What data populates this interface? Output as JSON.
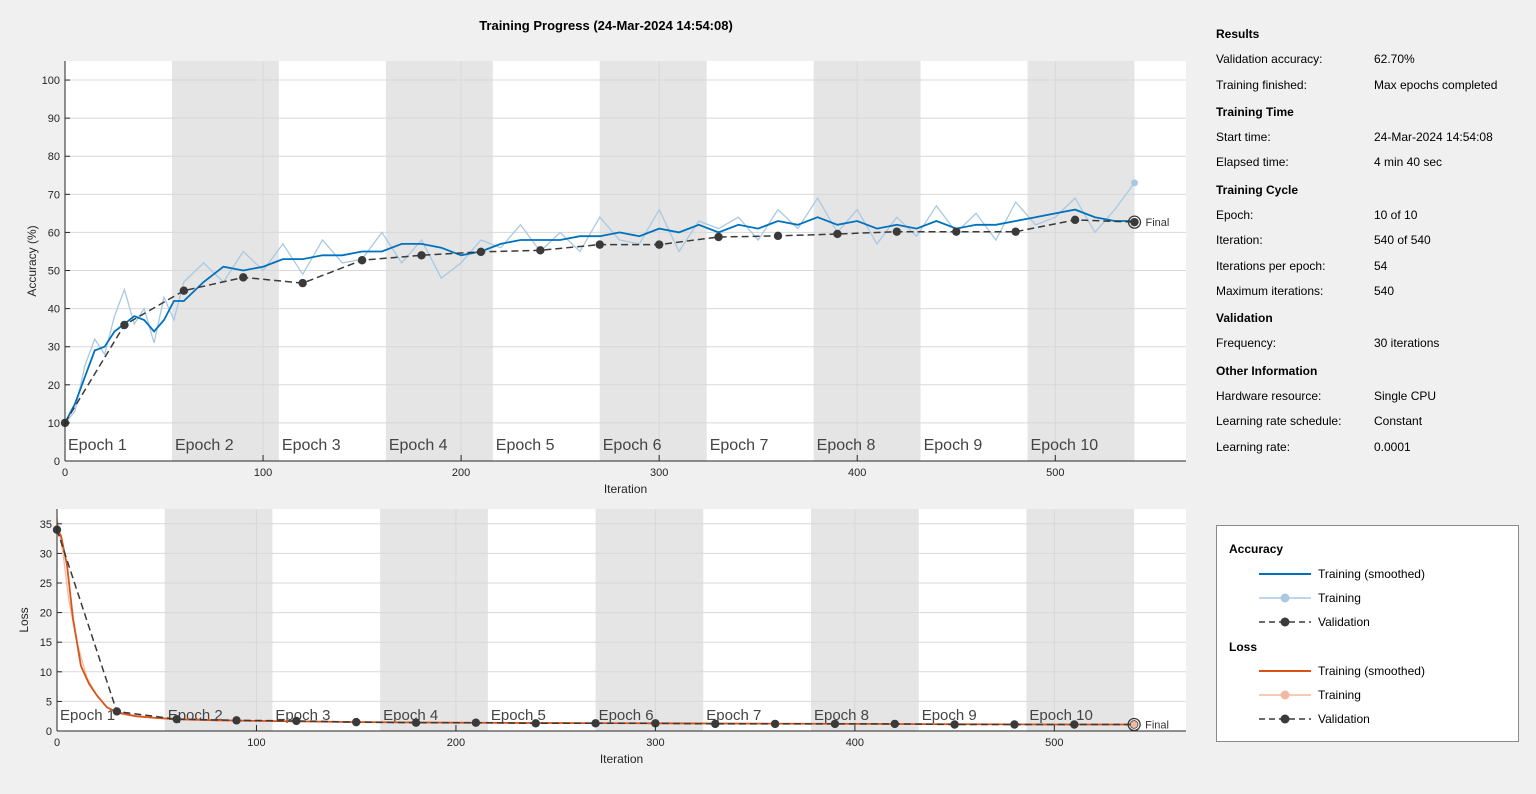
{
  "title": "Training Progress (24-Mar-2024 14:54:08)",
  "info": {
    "sections": [
      {
        "heading": "Results",
        "rows": [
          {
            "label": "Validation accuracy:",
            "value": "62.70%"
          },
          {
            "label": "Training finished:",
            "value": "Max epochs completed"
          }
        ]
      },
      {
        "heading": "Training Time",
        "rows": [
          {
            "label": "Start time:",
            "value": "24-Mar-2024 14:54:08"
          },
          {
            "label": "Elapsed time:",
            "value": "4 min 40 sec"
          }
        ]
      },
      {
        "heading": "Training Cycle",
        "rows": [
          {
            "label": "Epoch:",
            "value": "10 of 10"
          },
          {
            "label": "Iteration:",
            "value": "540 of 540"
          },
          {
            "label": "Iterations per epoch:",
            "value": "54"
          },
          {
            "label": "Maximum iterations:",
            "value": "540"
          }
        ]
      },
      {
        "heading": "Validation",
        "rows": [
          {
            "label": "Frequency:",
            "value": "30 iterations"
          }
        ]
      },
      {
        "heading": "Other Information",
        "rows": [
          {
            "label": "Hardware resource:",
            "value": "Single CPU"
          },
          {
            "label": "Learning rate schedule:",
            "value": "Constant"
          },
          {
            "label": "Learning rate:",
            "value": "0.0001"
          }
        ]
      }
    ]
  },
  "legend": {
    "accuracy_heading": "Accuracy",
    "loss_heading": "Loss",
    "items": {
      "acc_smoothed": "Training (smoothed)",
      "acc_training": "Training",
      "acc_validation": "Validation",
      "loss_smoothed": "Training (smoothed)",
      "loss_training": "Training",
      "loss_validation": "Validation"
    }
  },
  "colors": {
    "acc_smoothed": "#0072bd",
    "acc_raw": "#a9c9e2",
    "loss_smoothed": "#d95319",
    "loss_raw": "#f1b9a1",
    "validation": "#3a3a3a",
    "epoch_band": "#e5e5e5"
  },
  "chart_data": [
    {
      "type": "line",
      "xlabel": "Iteration",
      "ylabel": "Accuracy (%)",
      "xlim": [
        0,
        566
      ],
      "ylim": [
        0,
        105
      ],
      "xticks": [
        0,
        100,
        200,
        300,
        400,
        500
      ],
      "yticks": [
        0,
        10,
        20,
        30,
        40,
        50,
        60,
        70,
        80,
        90,
        100
      ],
      "epoch_labels": [
        "Epoch 1",
        "Epoch 2",
        "Epoch 3",
        "Epoch 4",
        "Epoch 5",
        "Epoch 6",
        "Epoch 7",
        "Epoch 8",
        "Epoch 9",
        "Epoch 10"
      ],
      "iterations_per_epoch": 54,
      "final_label": "Final",
      "grid": true,
      "series": [
        {
          "name": "Training (smoothed)",
          "x": [
            0,
            5,
            10,
            15,
            20,
            25,
            30,
            35,
            40,
            45,
            50,
            55,
            60,
            70,
            80,
            90,
            100,
            110,
            120,
            130,
            140,
            150,
            160,
            170,
            180,
            190,
            200,
            210,
            220,
            230,
            240,
            250,
            260,
            270,
            280,
            290,
            300,
            310,
            320,
            330,
            340,
            350,
            360,
            370,
            380,
            390,
            400,
            410,
            420,
            430,
            440,
            450,
            460,
            470,
            480,
            490,
            500,
            510,
            520,
            530,
            540
          ],
          "y": [
            10,
            15,
            22,
            29,
            30,
            34,
            36,
            38,
            37,
            34,
            37,
            42,
            42,
            47,
            51,
            50,
            51,
            53,
            53,
            54,
            54,
            55,
            55,
            57,
            57,
            56,
            54,
            55,
            57,
            58,
            58,
            58,
            59,
            59,
            60,
            59,
            61,
            60,
            62,
            60,
            62,
            61,
            63,
            62,
            64,
            62,
            63,
            61,
            62,
            61,
            63,
            61,
            62,
            62,
            63,
            64,
            65,
            66,
            64,
            63,
            63
          ]
        },
        {
          "name": "Training",
          "x": [
            0,
            5,
            10,
            15,
            20,
            25,
            30,
            35,
            40,
            45,
            50,
            55,
            60,
            70,
            80,
            90,
            100,
            110,
            120,
            130,
            140,
            150,
            160,
            170,
            180,
            190,
            200,
            210,
            220,
            230,
            240,
            250,
            260,
            270,
            280,
            290,
            300,
            310,
            320,
            330,
            340,
            350,
            360,
            370,
            380,
            390,
            400,
            410,
            420,
            430,
            440,
            450,
            460,
            470,
            480,
            490,
            500,
            510,
            520,
            530,
            540
          ],
          "y": [
            10,
            13,
            25,
            32,
            28,
            38,
            45,
            36,
            40,
            31,
            43,
            37,
            47,
            52,
            47,
            55,
            50,
            57,
            49,
            58,
            52,
            53,
            60,
            52,
            58,
            48,
            52,
            58,
            56,
            62,
            55,
            60,
            55,
            64,
            58,
            57,
            66,
            55,
            63,
            61,
            64,
            58,
            66,
            61,
            69,
            60,
            66,
            57,
            64,
            59,
            67,
            60,
            65,
            58,
            68,
            62,
            64,
            69,
            60,
            66,
            73
          ]
        },
        {
          "name": "Validation",
          "x": [
            0,
            30,
            60,
            90,
            120,
            150,
            180,
            210,
            240,
            270,
            300,
            330,
            360,
            390,
            420,
            450,
            480,
            510,
            540
          ],
          "y": [
            10,
            35.7,
            44.7,
            48.2,
            46.7,
            52.7,
            54,
            54.9,
            55.3,
            56.8,
            56.8,
            58.8,
            59.1,
            59.6,
            60.2,
            60.2,
            60.2,
            63.3,
            62.7
          ]
        }
      ]
    },
    {
      "type": "line",
      "xlabel": "Iteration",
      "ylabel": "Loss",
      "xlim": [
        0,
        566
      ],
      "ylim": [
        0,
        37.5
      ],
      "xticks": [
        0,
        100,
        200,
        300,
        400,
        500
      ],
      "yticks": [
        0,
        5,
        10,
        15,
        20,
        25,
        30,
        35
      ],
      "epoch_labels": [
        "Epoch 1",
        "Epoch 2",
        "Epoch 3",
        "Epoch 4",
        "Epoch 5",
        "Epoch 6",
        "Epoch 7",
        "Epoch 8",
        "Epoch 9",
        "Epoch 10"
      ],
      "iterations_per_epoch": 54,
      "final_label": "Final",
      "grid": true,
      "series": [
        {
          "name": "Training (smoothed)",
          "x": [
            0,
            2,
            5,
            8,
            12,
            16,
            20,
            25,
            30,
            35,
            40,
            50,
            60,
            80,
            100,
            150,
            200,
            300,
            400,
            500,
            540
          ],
          "y": [
            34,
            33,
            28,
            19,
            11,
            8,
            6,
            4,
            3.2,
            2.8,
            2.5,
            2.2,
            2,
            1.8,
            1.7,
            1.5,
            1.4,
            1.3,
            1.2,
            1.1,
            1.1
          ]
        },
        {
          "name": "Training",
          "x": [
            0,
            3,
            6,
            10,
            15,
            20,
            25,
            30,
            40,
            60,
            100,
            200,
            300,
            400,
            540
          ],
          "y": [
            36,
            30,
            22,
            15,
            9,
            6,
            4,
            3,
            2.4,
            2,
            1.7,
            1.4,
            1.3,
            1.2,
            1.1
          ]
        },
        {
          "name": "Validation",
          "x": [
            0,
            30,
            60,
            90,
            120,
            150,
            180,
            210,
            240,
            270,
            300,
            330,
            360,
            390,
            420,
            450,
            480,
            510,
            540
          ],
          "y": [
            34,
            3.3,
            2,
            1.8,
            1.7,
            1.5,
            1.4,
            1.4,
            1.3,
            1.3,
            1.3,
            1.2,
            1.2,
            1.2,
            1.2,
            1.1,
            1.1,
            1.1,
            1.1
          ]
        }
      ]
    }
  ]
}
